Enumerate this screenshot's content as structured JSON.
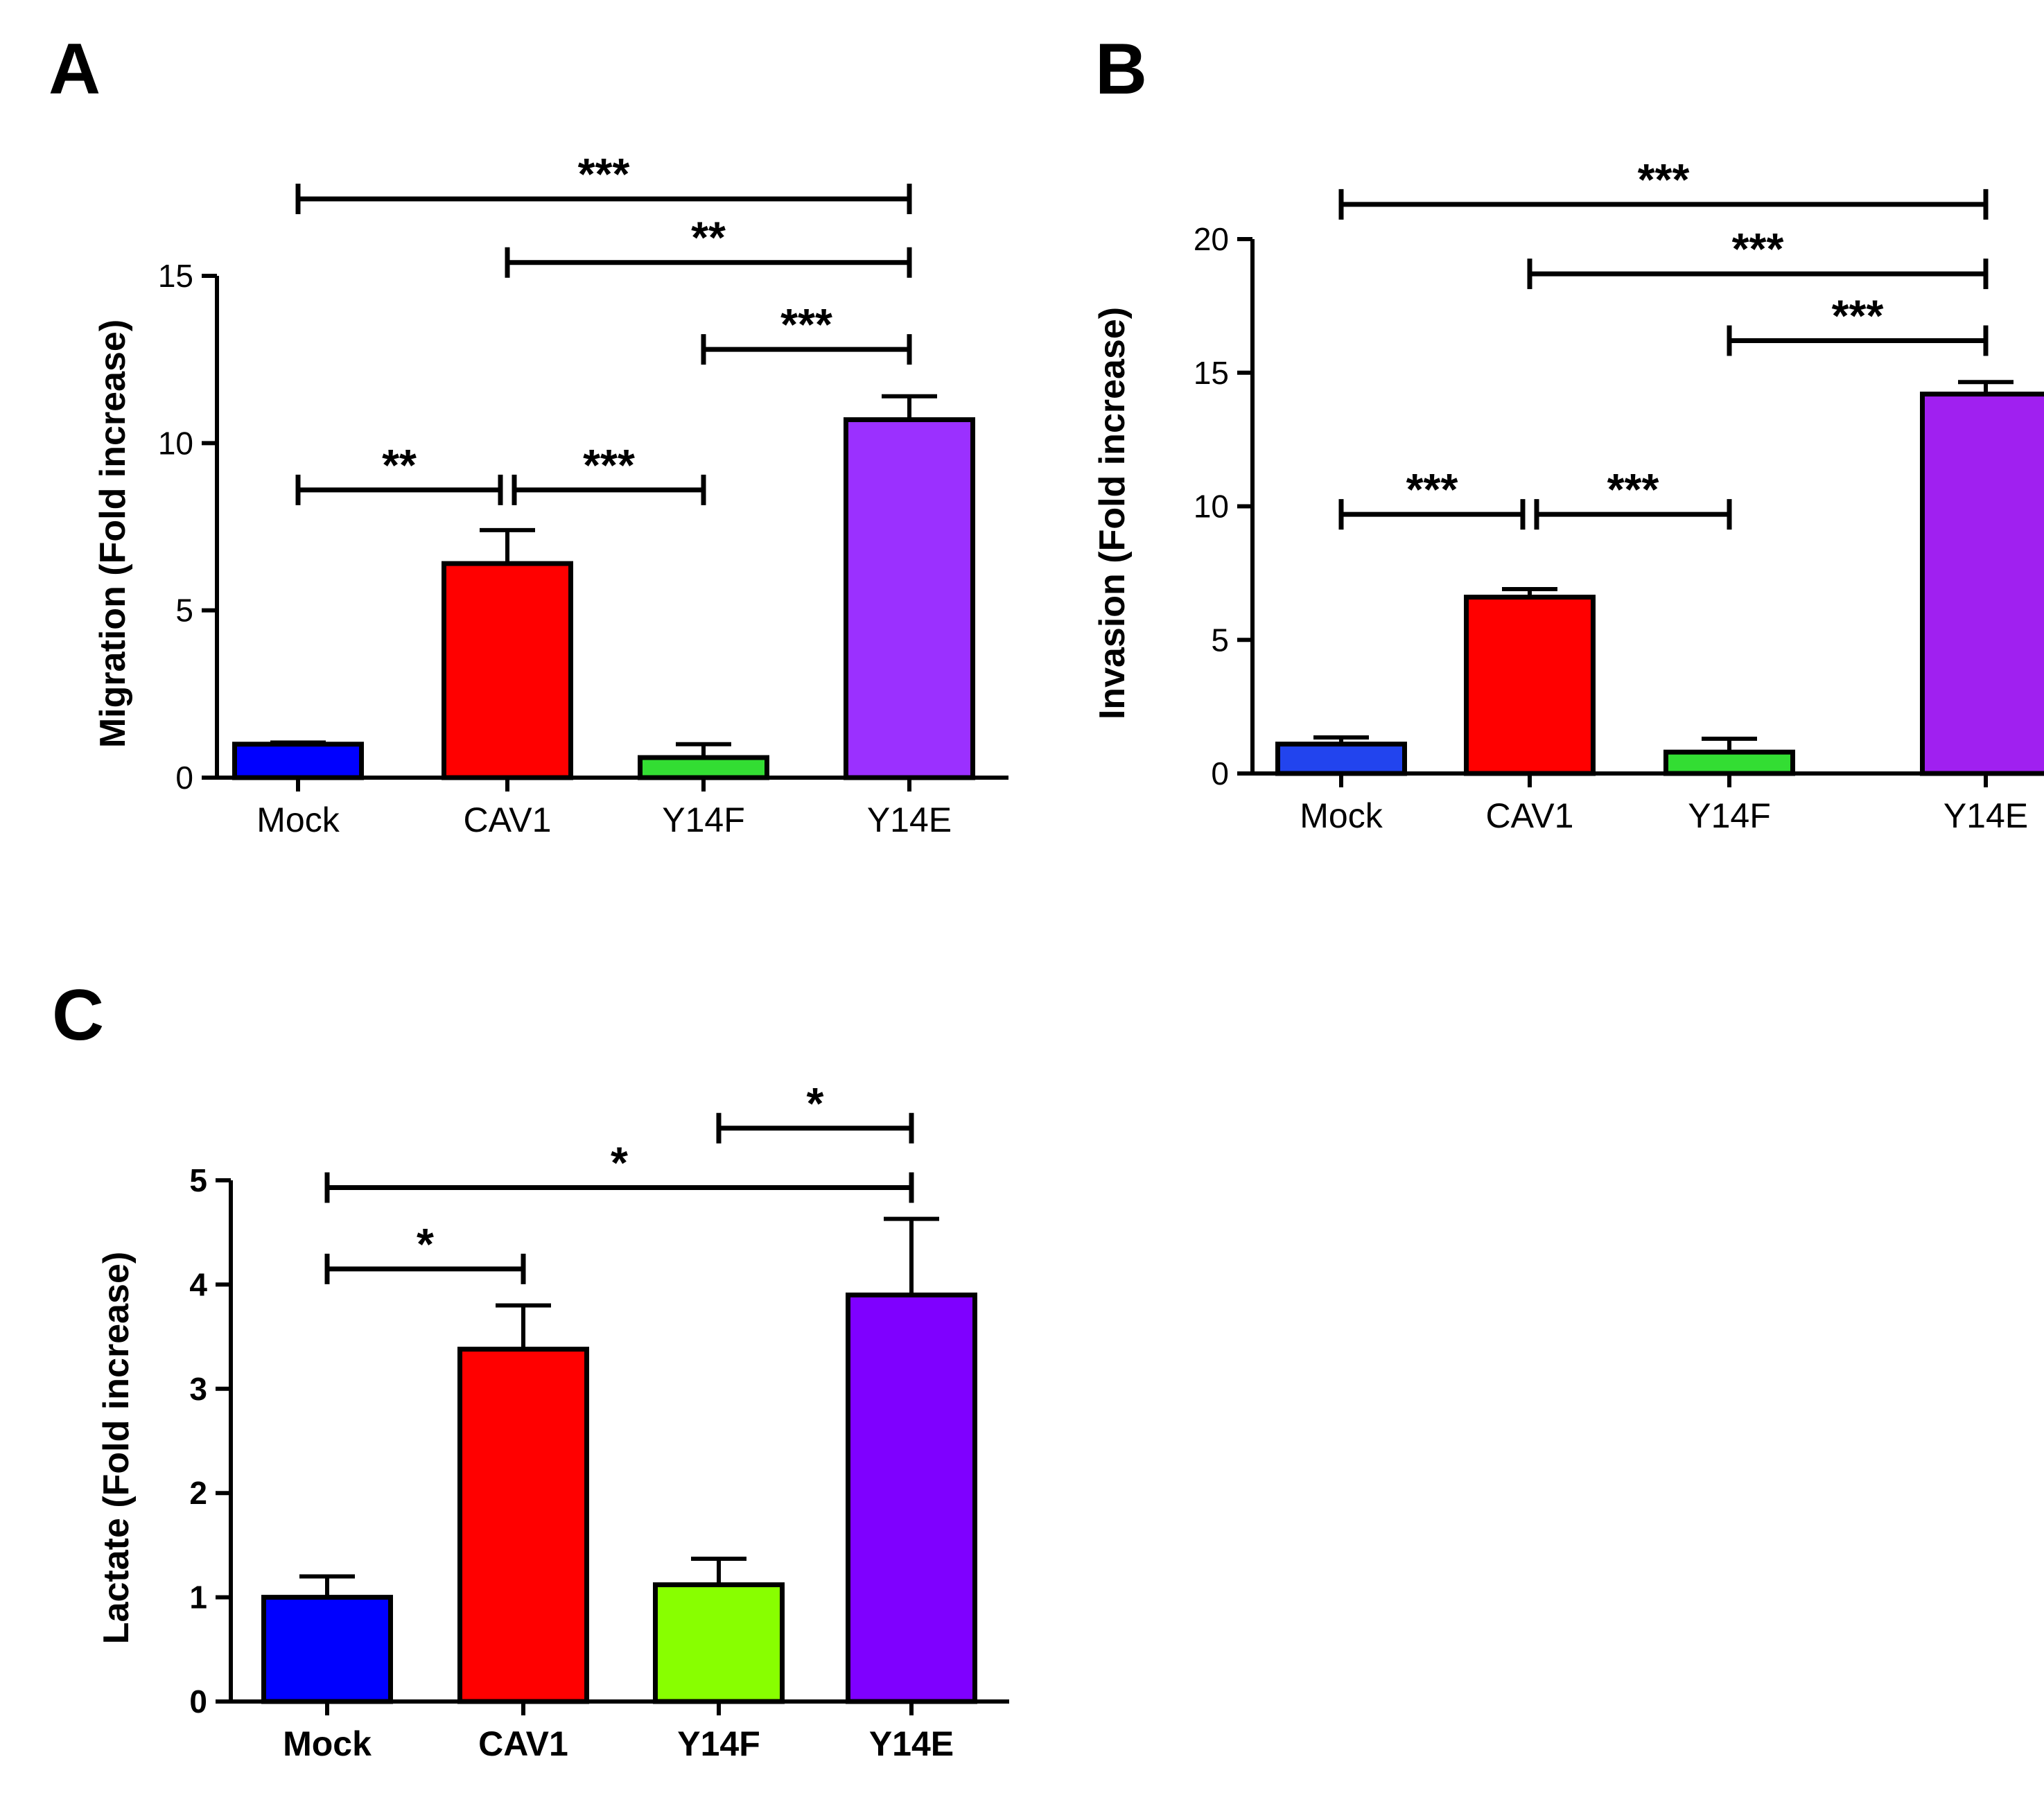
{
  "chart_data": [
    {
      "panel": "A",
      "type": "bar",
      "title": "",
      "ylabel": "Migration (Fold increase)",
      "xlabel": "",
      "ylim": [
        0,
        15
      ],
      "yticks": [
        0,
        5,
        10,
        15
      ],
      "categories": [
        "Mock",
        "CAV1",
        "Y14F",
        "Y14E"
      ],
      "values": [
        1.0,
        6.4,
        0.6,
        10.7
      ],
      "errors": [
        0.05,
        1.0,
        0.4,
        0.7
      ],
      "colors": [
        "#0000ff",
        "#ff0000",
        "#33dd33",
        "#9b30ff"
      ],
      "bold_labels": false,
      "significance": [
        {
          "from": 0,
          "to": 1,
          "label": "**",
          "y": 8.6
        },
        {
          "from": 1,
          "to": 2,
          "label": "***",
          "y": 8.6
        },
        {
          "from": 2,
          "to": 3,
          "label": "***",
          "y": 12.8
        },
        {
          "from": 1,
          "to": 3,
          "label": "**",
          "y": 15.4
        },
        {
          "from": 0,
          "to": 3,
          "label": "***",
          "y": 17.3
        }
      ]
    },
    {
      "panel": "B",
      "type": "bar",
      "title": "",
      "ylabel": "Invasion (Fold increase)",
      "xlabel": "",
      "ylim": [
        0,
        20
      ],
      "yticks": [
        0,
        5,
        10,
        15,
        20
      ],
      "categories": [
        "Mock",
        "CAV1",
        "Y14F",
        "Y14E"
      ],
      "values": [
        1.1,
        6.6,
        0.8,
        14.2
      ],
      "errors": [
        0.25,
        0.3,
        0.5,
        0.45
      ],
      "colors": [
        "#2244ee",
        "#ff0000",
        "#33dd33",
        "#a020f0"
      ],
      "bold_labels": false,
      "significance": [
        {
          "from": 0,
          "to": 1,
          "label": "***",
          "y": 9.7
        },
        {
          "from": 1,
          "to": 2,
          "label": "***",
          "y": 9.7
        },
        {
          "from": 2,
          "to": 3,
          "label": "***",
          "y": 16.2
        },
        {
          "from": 1,
          "to": 3,
          "label": "***",
          "y": 18.7
        },
        {
          "from": 0,
          "to": 3,
          "label": "***",
          "y": 21.3
        }
      ]
    },
    {
      "panel": "C",
      "type": "bar",
      "title": "",
      "ylabel": "Lactate (Fold increase)",
      "xlabel": "",
      "ylim": [
        0,
        5
      ],
      "yticks": [
        0,
        1,
        2,
        3,
        4,
        5
      ],
      "categories": [
        "Mock",
        "CAV1",
        "Y14F",
        "Y14E"
      ],
      "values": [
        1.0,
        3.38,
        1.12,
        3.9
      ],
      "errors": [
        0.2,
        0.42,
        0.25,
        0.73
      ],
      "colors": [
        "#0000ff",
        "#ff0000",
        "#88ff00",
        "#7f00ff"
      ],
      "bold_labels": true,
      "significance": [
        {
          "from": 0,
          "to": 1,
          "label": "*",
          "y": 4.15
        },
        {
          "from": 0,
          "to": 3,
          "label": "*",
          "y": 4.93
        },
        {
          "from": 2,
          "to": 3,
          "label": "*",
          "y": 5.5
        }
      ]
    }
  ]
}
